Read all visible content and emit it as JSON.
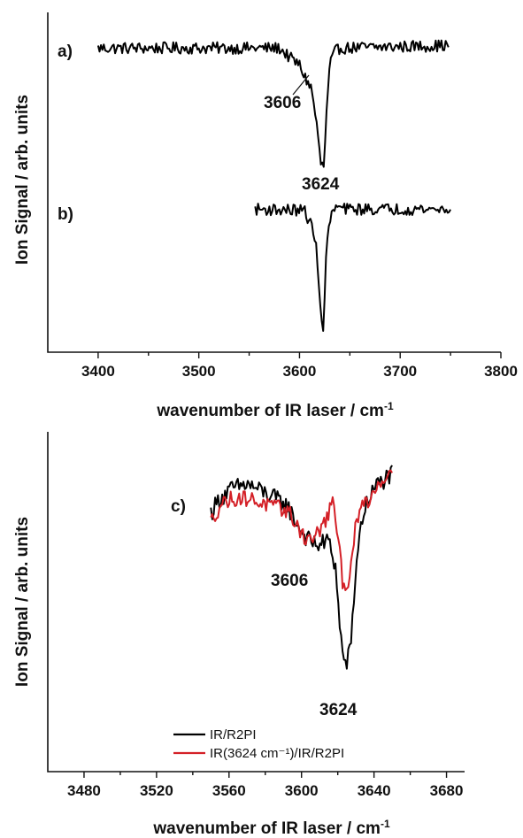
{
  "chart_data": [
    {
      "id": "top",
      "type": "line",
      "xlabel": "wavenumber of IR laser / cm",
      "xlabel_sup": "-1",
      "ylabel": "Ion Signal / arb. units",
      "xlim": [
        3350,
        3800
      ],
      "xticks": [
        3400,
        3500,
        3600,
        3700,
        3800
      ],
      "xtick_labels": [
        "3400",
        "3500",
        "3600",
        "3700",
        "3800"
      ],
      "series": [
        {
          "label": "a)",
          "color": "#000000",
          "baseline": 0.93,
          "noise": 0.045,
          "points": [
            [
              3400,
              0.93
            ],
            [
              3580,
              0.93
            ],
            [
              3590,
              0.86
            ],
            [
              3600,
              0.8
            ],
            [
              3606,
              0.7
            ],
            [
              3612,
              0.62
            ],
            [
              3617,
              0.35
            ],
            [
              3621,
              0.05
            ],
            [
              3624,
              0.02
            ],
            [
              3627,
              0.45
            ],
            [
              3630,
              0.8
            ],
            [
              3635,
              0.9
            ],
            [
              3640,
              0.93
            ],
            [
              3748,
              0.95
            ]
          ]
        },
        {
          "label": "b)",
          "color": "#000000",
          "baseline": 0.93,
          "noise": 0.045,
          "points": [
            [
              3556,
              0.93
            ],
            [
              3605,
              0.92
            ],
            [
              3612,
              0.8
            ],
            [
              3617,
              0.62
            ],
            [
              3620,
              0.3
            ],
            [
              3622,
              0.03
            ],
            [
              3624,
              0.02
            ],
            [
              3626,
              0.55
            ],
            [
              3630,
              0.85
            ],
            [
              3636,
              0.95
            ],
            [
              3645,
              0.93
            ],
            [
              3750,
              0.93
            ]
          ]
        }
      ],
      "annotations": [
        {
          "text": "3606",
          "x": 3606,
          "arrow": true
        },
        {
          "text": "3624",
          "x": 3624
        }
      ]
    },
    {
      "id": "bottom",
      "type": "line",
      "xlabel": "wavenumber of IR laser / cm",
      "xlabel_sup": "-1",
      "ylabel": "Ion Signal / arb. units",
      "xlim": [
        3460,
        3710
      ],
      "xticks": [
        3480,
        3520,
        3560,
        3600,
        3640,
        3680
      ],
      "xtick_labels": [
        "3480",
        "3520",
        "3560",
        "3600",
        "3640",
        "3680"
      ],
      "series": [
        {
          "label": "IR/R2PI",
          "color": "#000000",
          "noise": 0.04,
          "points": [
            [
              3550,
              0.74
            ],
            [
              3555,
              0.8
            ],
            [
              3562,
              0.84
            ],
            [
              3570,
              0.86
            ],
            [
              3578,
              0.83
            ],
            [
              3585,
              0.8
            ],
            [
              3592,
              0.77
            ],
            [
              3598,
              0.68
            ],
            [
              3604,
              0.62
            ],
            [
              3610,
              0.6
            ],
            [
              3615,
              0.62
            ],
            [
              3619,
              0.5
            ],
            [
              3621,
              0.25
            ],
            [
              3624,
              0.08
            ],
            [
              3627,
              0.15
            ],
            [
              3630,
              0.5
            ],
            [
              3633,
              0.7
            ],
            [
              3637,
              0.8
            ],
            [
              3642,
              0.86
            ],
            [
              3650,
              0.9
            ]
          ]
        },
        {
          "label": "IR(3624 cm⁻¹)/IR/R2PI",
          "color": "#d42027",
          "noise": 0.035,
          "points": [
            [
              3550,
              0.7
            ],
            [
              3556,
              0.78
            ],
            [
              3563,
              0.8
            ],
            [
              3570,
              0.8
            ],
            [
              3578,
              0.78
            ],
            [
              3585,
              0.76
            ],
            [
              3592,
              0.75
            ],
            [
              3598,
              0.68
            ],
            [
              3603,
              0.62
            ],
            [
              3608,
              0.64
            ],
            [
              3613,
              0.7
            ],
            [
              3617,
              0.78
            ],
            [
              3620,
              0.65
            ],
            [
              3623,
              0.42
            ],
            [
              3626,
              0.45
            ],
            [
              3630,
              0.68
            ],
            [
              3634,
              0.78
            ],
            [
              3638,
              0.8
            ],
            [
              3642,
              0.86
            ],
            [
              3650,
              0.92
            ]
          ]
        }
      ],
      "panel_label": "c)",
      "annotations": [
        {
          "text": "3606",
          "x": 3606
        },
        {
          "text": "3624",
          "x": 3624
        }
      ],
      "legend": {
        "position": "bottom-center"
      }
    }
  ]
}
